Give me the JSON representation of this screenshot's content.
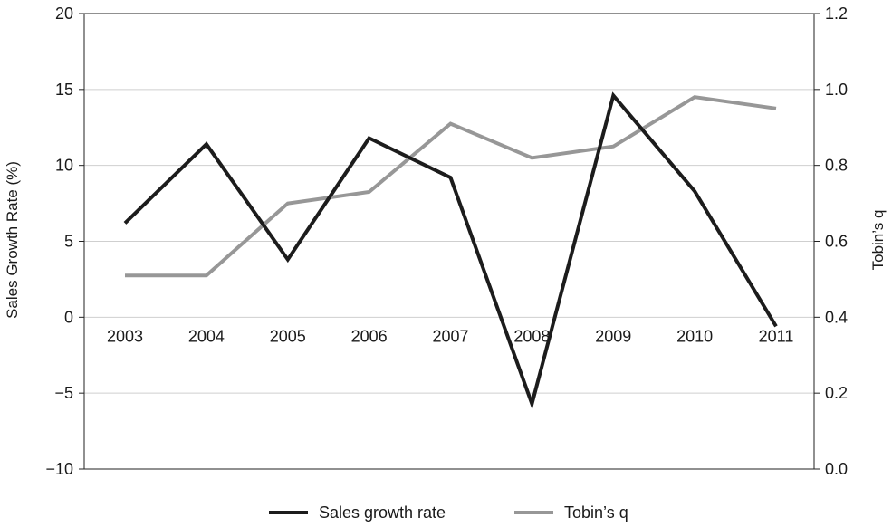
{
  "chart_data": {
    "type": "line",
    "categories": [
      "2003",
      "2004",
      "2005",
      "2006",
      "2007",
      "2008",
      "2009",
      "2010",
      "2011"
    ],
    "series": [
      {
        "name": "Sales growth rate",
        "axis": "left",
        "color": "#1c1c1c",
        "values": [
          6.2,
          11.4,
          3.8,
          11.8,
          9.2,
          -5.7,
          14.6,
          8.3,
          -0.6
        ]
      },
      {
        "name": "Tobin’s q",
        "axis": "right",
        "color": "#979797",
        "values": [
          0.51,
          0.51,
          0.7,
          0.73,
          0.91,
          0.82,
          0.85,
          0.98,
          0.95
        ]
      }
    ],
    "ylabel": "Sales Growth Rate (%)",
    "y2label": "Tobin’s q",
    "ylim": [
      -10,
      20
    ],
    "y2lim": [
      0.0,
      1.2
    ],
    "yticks": [
      "−10",
      "−5",
      "0",
      "5",
      "10",
      "15",
      "20"
    ],
    "y2ticks": [
      "0.0",
      "0.2",
      "0.4",
      "0.6",
      "0.8",
      "1.0",
      "1.2"
    ],
    "grid": true,
    "legend_position": "bottom"
  }
}
